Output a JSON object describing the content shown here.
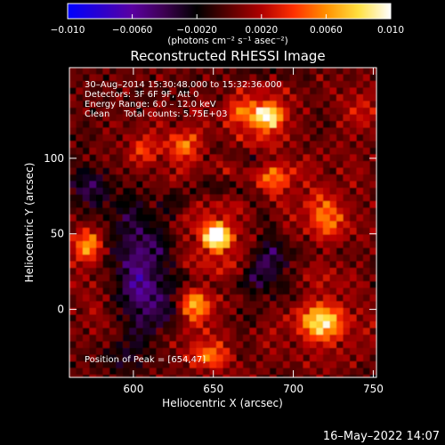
{
  "chart_data": {
    "type": "heatmap",
    "title": "Reconstructed RHESSI Image",
    "xlabel": "Heliocentric X (arcsec)",
    "ylabel": "Heliocentric Y (arcsec)",
    "xlim": [
      560,
      752
    ],
    "ylim": [
      -45,
      160
    ],
    "x_ticks": [
      {
        "value": 600,
        "label": "600"
      },
      {
        "value": 650,
        "label": "650"
      },
      {
        "value": 700,
        "label": "700"
      },
      {
        "value": 750,
        "label": "750"
      }
    ],
    "y_ticks": [
      {
        "value": 0,
        "label": "0"
      },
      {
        "value": 50,
        "label": "50"
      },
      {
        "value": 100,
        "label": "100"
      }
    ],
    "colorbar": {
      "range": [
        -0.01,
        0.01
      ],
      "unit_label": "(photons cm⁻² s⁻¹ asec⁻²)",
      "ticks": [
        {
          "value": -0.01,
          "label": "−0.010"
        },
        {
          "value": -0.006,
          "label": "−0.0060"
        },
        {
          "value": -0.002,
          "label": "−0.0020"
        },
        {
          "value": 0.002,
          "label": "0.0020"
        },
        {
          "value": 0.006,
          "label": "0.0060"
        },
        {
          "value": 0.01,
          "label": "0.010"
        }
      ],
      "palette": [
        "#0000ff",
        "#2a00d0",
        "#5a00a0",
        "#3c0050",
        "#000000",
        "#5a0000",
        "#b00000",
        "#ff3000",
        "#ff9000",
        "#ffe040",
        "#ffffff"
      ]
    },
    "annotations": [
      "30–Aug–2014 15:30:48.000 to 15:32:36.000",
      "Detectors: 3F 6F 9F, Att 0",
      "Energy Range: 6.0 – 12.0 keV",
      "Clean     Total counts: 5.75E+03"
    ],
    "peak_label": "Position of Peak = [654,47]",
    "peak": {
      "x": 654,
      "y": 47
    },
    "sources": [
      {
        "x": 652,
        "y": 48,
        "value": 0.0105,
        "sx": 9,
        "sy": 9
      },
      {
        "x": 684,
        "y": 128,
        "value": 0.0085,
        "sx": 9,
        "sy": 8
      },
      {
        "x": 718,
        "y": -8,
        "value": 0.0075,
        "sx": 14,
        "sy": 12
      },
      {
        "x": 572,
        "y": 42,
        "value": 0.006,
        "sx": 9,
        "sy": 11
      },
      {
        "x": 638,
        "y": 2,
        "value": 0.0055,
        "sx": 10,
        "sy": 12
      },
      {
        "x": 632,
        "y": 108,
        "value": 0.0045,
        "sx": 10,
        "sy": 10
      },
      {
        "x": 720,
        "y": 62,
        "value": 0.0045,
        "sx": 12,
        "sy": 16
      },
      {
        "x": 688,
        "y": 88,
        "value": 0.004,
        "sx": 10,
        "sy": 12
      },
      {
        "x": 648,
        "y": -32,
        "value": 0.004,
        "sx": 14,
        "sy": 8
      },
      {
        "x": 668,
        "y": 130,
        "value": 0.004,
        "sx": 10,
        "sy": 8
      },
      {
        "x": 605,
        "y": 105,
        "value": 0.003,
        "sx": 10,
        "sy": 10
      },
      {
        "x": 576,
        "y": 0,
        "value": 0.002,
        "sx": 8,
        "sy": 10
      },
      {
        "x": 742,
        "y": 130,
        "value": 0.0025,
        "sx": 10,
        "sy": 14
      },
      {
        "x": 600,
        "y": 40,
        "value": -0.004,
        "sx": 14,
        "sy": 22
      },
      {
        "x": 612,
        "y": 5,
        "value": -0.0045,
        "sx": 12,
        "sy": 16
      },
      {
        "x": 572,
        "y": 78,
        "value": -0.003,
        "sx": 10,
        "sy": 12
      },
      {
        "x": 686,
        "y": 28,
        "value": -0.003,
        "sx": 10,
        "sy": 18
      },
      {
        "x": 596,
        "y": -32,
        "value": -0.002,
        "sx": 12,
        "sy": 8
      }
    ],
    "grid": false,
    "timestamp": "16–May–2022 14:07"
  }
}
